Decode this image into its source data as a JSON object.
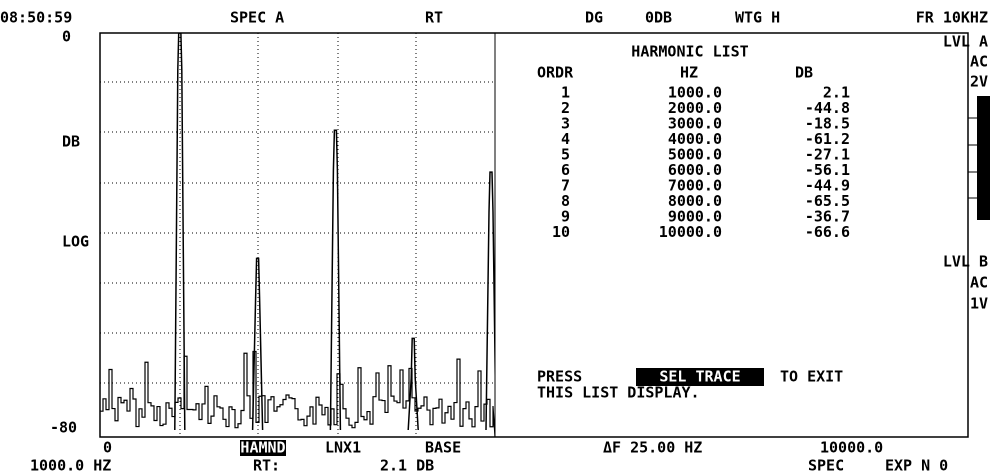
{
  "status_bar": {
    "time": "08:50:59",
    "mode": "SPEC A",
    "rt": "RT",
    "dg": "DG",
    "ref": "0DB",
    "weighting": "WTG H",
    "range": "FR 10KHZ"
  },
  "levels": {
    "a": {
      "label": "LVL A",
      "coupling": "AC",
      "range": "2V"
    },
    "b": {
      "label": "LVL B",
      "coupling": "AC",
      "range": "1V"
    }
  },
  "axis": {
    "top": "0",
    "unit": "DB",
    "scale": "LOG",
    "bottom": "-80"
  },
  "harmonic_list": {
    "title": "HARMONIC LIST",
    "headers": [
      "ORDR",
      "HZ",
      "DB"
    ],
    "rows": [
      [
        "1",
        "1000.0",
        "2.1"
      ],
      [
        "2",
        "2000.0",
        "-44.8"
      ],
      [
        "3",
        "3000.0",
        "-18.5"
      ],
      [
        "4",
        "4000.0",
        "-61.2"
      ],
      [
        "5",
        "5000.0",
        "-27.1"
      ],
      [
        "6",
        "6000.0",
        "-56.1"
      ],
      [
        "7",
        "7000.0",
        "-44.9"
      ],
      [
        "8",
        "8000.0",
        "-65.5"
      ],
      [
        "9",
        "9000.0",
        "-36.7"
      ],
      [
        "10",
        "10000.0",
        "-66.6"
      ]
    ]
  },
  "prompt": {
    "press": "PRESS",
    "key": "SEL TRACE",
    "to_exit": "TO EXIT",
    "line2": "THIS LIST DISPLAY."
  },
  "footer": {
    "start": "0",
    "softkeys": [
      "HAMND",
      "LNX1",
      "BASE"
    ],
    "delta_f": "ΔF 25.00 HZ",
    "end": "10000.0",
    "marker_freq": "1000.0 HZ",
    "marker_label": "RT:",
    "marker_value": "2.1 DB",
    "spec": "SPEC",
    "exp": "EXP N 0"
  }
}
